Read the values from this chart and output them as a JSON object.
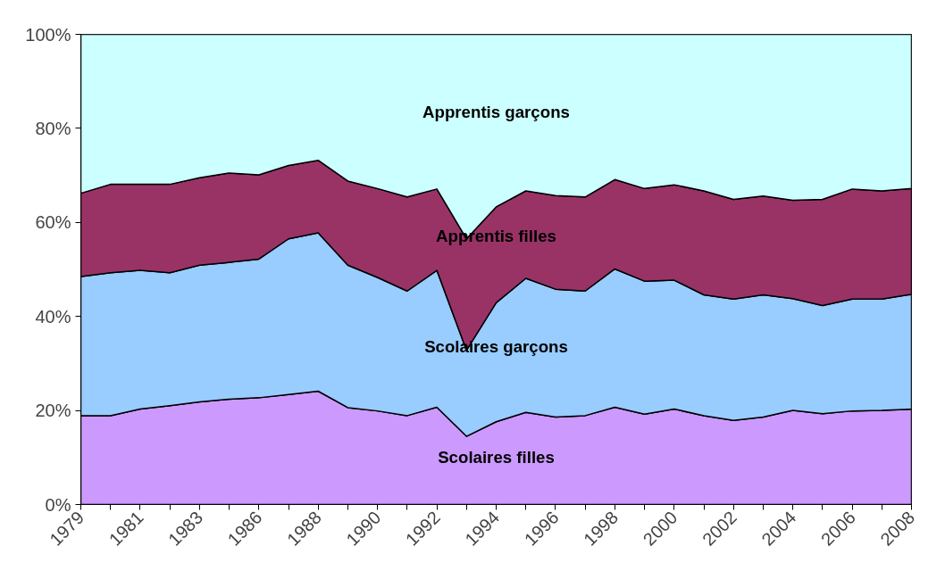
{
  "chart_data": {
    "type": "area",
    "stacked": true,
    "grid": false,
    "legend": false,
    "categories": [
      "1979",
      null,
      "1981",
      null,
      "1983",
      null,
      "1986",
      null,
      "1988",
      null,
      "1990",
      null,
      "1992",
      null,
      "1994",
      null,
      "1996",
      null,
      "1998",
      null,
      "2000",
      null,
      "2002",
      null,
      "2004",
      null,
      "2006",
      null,
      "2008"
    ],
    "ylim": [
      0,
      100
    ],
    "yticks": [
      {
        "value": 0,
        "label": "0%"
      },
      {
        "value": 20,
        "label": "20%"
      },
      {
        "value": 40,
        "label": "40%"
      },
      {
        "value": 60,
        "label": "60%"
      },
      {
        "value": 80,
        "label": "80%"
      },
      {
        "value": 100,
        "label": "100%"
      }
    ],
    "series": [
      {
        "name": "Scolaires filles",
        "color": "#cc99ff",
        "values": [
          18.9,
          18.9,
          20.3,
          21.0,
          21.8,
          22.4,
          22.7,
          23.4,
          24.1,
          20.6,
          19.9,
          18.9,
          20.7,
          14.5,
          17.6,
          19.6,
          18.6,
          18.9,
          20.7,
          19.2,
          20.3,
          18.9,
          17.9,
          18.6,
          20.0,
          19.3,
          19.9,
          20.0,
          20.3
        ]
      },
      {
        "name": "Scolaires garçons",
        "color": "#99ccff",
        "values": [
          29.6,
          30.4,
          29.5,
          28.3,
          29.1,
          29.1,
          29.5,
          33.1,
          33.7,
          30.3,
          28.4,
          26.5,
          29.1,
          18.3,
          25.3,
          28.5,
          27.2,
          26.5,
          29.4,
          28.3,
          27.4,
          25.7,
          25.8,
          26.0,
          23.8,
          23.0,
          23.8,
          23.7,
          24.4
        ]
      },
      {
        "name": "Apprentis filles",
        "color": "#993366",
        "values": [
          17.7,
          18.8,
          18.3,
          18.8,
          18.6,
          19.0,
          17.9,
          15.6,
          15.4,
          17.9,
          18.9,
          20.0,
          17.3,
          23.7,
          20.4,
          18.6,
          19.9,
          20.0,
          19.0,
          19.7,
          20.3,
          22.1,
          21.2,
          21.0,
          20.9,
          22.6,
          23.4,
          23.0,
          22.5
        ]
      },
      {
        "name": "Apprentis garçons",
        "color": "#ccffff",
        "values": [
          33.8,
          31.9,
          31.9,
          31.9,
          30.5,
          29.5,
          29.9,
          27.9,
          26.8,
          31.2,
          32.8,
          34.6,
          32.9,
          43.5,
          36.7,
          33.3,
          34.3,
          34.6,
          30.9,
          32.8,
          32.0,
          33.3,
          35.1,
          34.4,
          35.3,
          35.1,
          32.9,
          33.3,
          32.8
        ]
      }
    ]
  }
}
